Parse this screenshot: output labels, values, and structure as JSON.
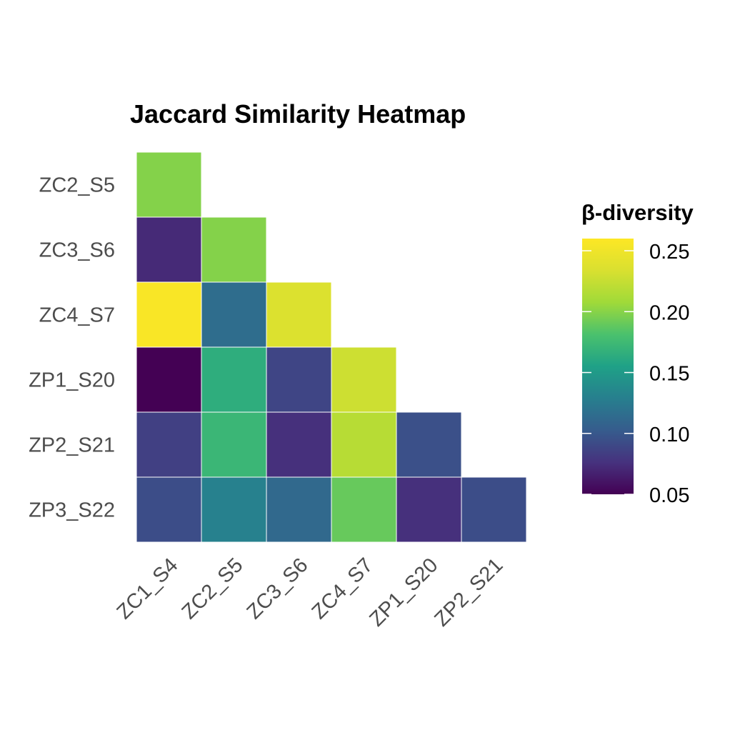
{
  "chart_data": {
    "type": "heatmap",
    "title": "Jaccard Similarity Heatmap",
    "xlabel": "",
    "ylabel": "",
    "x_categories": [
      "ZC1_S4",
      "ZC2_S5",
      "ZC3_S6",
      "ZC4_S7",
      "ZP1_S20",
      "ZP2_S21"
    ],
    "y_categories": [
      "ZC2_S5",
      "ZC3_S6",
      "ZC4_S7",
      "ZP1_S20",
      "ZP2_S21",
      "ZP3_S22"
    ],
    "values": [
      [
        0.199,
        null,
        null,
        null,
        null,
        null
      ],
      [
        0.072,
        0.199,
        null,
        null,
        null,
        null
      ],
      [
        0.257,
        0.115,
        0.236,
        null,
        null,
        null
      ],
      [
        0.05,
        0.165,
        0.088,
        0.228,
        null,
        null
      ],
      [
        0.085,
        0.172,
        0.075,
        0.218,
        0.095,
        null
      ],
      [
        0.093,
        0.13,
        0.112,
        0.19,
        0.075,
        0.093
      ]
    ],
    "legend": {
      "title": "β-diversity",
      "placement": "right",
      "min": 0.05,
      "max": 0.26,
      "ticks": [
        0.05,
        0.1,
        0.15,
        0.2,
        0.25
      ],
      "tick_labels": [
        "0.05",
        "0.10",
        "0.15",
        "0.20",
        "0.25"
      ],
      "colormap": "viridis"
    },
    "grid": false
  }
}
